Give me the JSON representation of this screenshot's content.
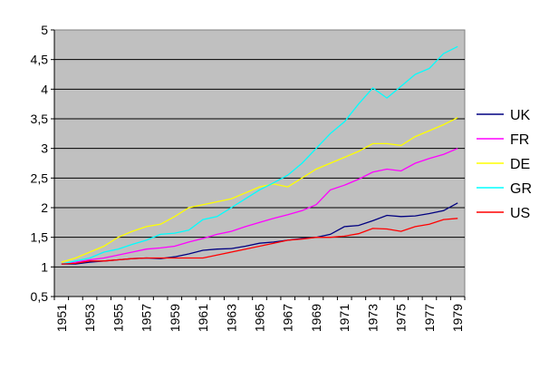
{
  "chart_data": {
    "type": "line",
    "title": "",
    "xlabel": "",
    "ylabel": "",
    "x": [
      1951,
      1952,
      1953,
      1954,
      1955,
      1956,
      1957,
      1958,
      1959,
      1960,
      1961,
      1962,
      1963,
      1964,
      1965,
      1966,
      1967,
      1968,
      1969,
      1970,
      1971,
      1972,
      1973,
      1974,
      1975,
      1976,
      1977,
      1978,
      1979
    ],
    "x_tick_labels": [
      "1951",
      "1953",
      "1955",
      "1957",
      "1959",
      "1961",
      "1963",
      "1965",
      "1967",
      "1969",
      "1971",
      "1973",
      "1975",
      "1977",
      "1979"
    ],
    "y_tick_labels": [
      "0,5",
      "1",
      "1,5",
      "2",
      "2,5",
      "3",
      "3,5",
      "4",
      "4,5",
      "5"
    ],
    "y_ticks": [
      0.5,
      1,
      1.5,
      2,
      2.5,
      3,
      3.5,
      4,
      4.5,
      5
    ],
    "ylim": [
      0.5,
      5
    ],
    "grid": "horizontal",
    "plot_background": "#c0c0c0",
    "legend_placement": "right",
    "series": [
      {
        "name": "UK",
        "color": "#000080",
        "values": [
          1.05,
          1.05,
          1.08,
          1.1,
          1.12,
          1.14,
          1.15,
          1.14,
          1.17,
          1.22,
          1.28,
          1.3,
          1.31,
          1.35,
          1.4,
          1.42,
          1.45,
          1.48,
          1.5,
          1.55,
          1.68,
          1.7,
          1.78,
          1.87,
          1.85,
          1.86,
          1.9,
          1.95,
          2.08
        ]
      },
      {
        "name": "FR",
        "color": "#ff00ff",
        "values": [
          1.05,
          1.08,
          1.12,
          1.15,
          1.2,
          1.25,
          1.3,
          1.32,
          1.35,
          1.42,
          1.48,
          1.55,
          1.6,
          1.68,
          1.75,
          1.82,
          1.88,
          1.95,
          2.05,
          2.3,
          2.38,
          2.48,
          2.6,
          2.65,
          2.62,
          2.75,
          2.83,
          2.9,
          3.0
        ]
      },
      {
        "name": "DE",
        "color": "#ffff00",
        "values": [
          1.08,
          1.15,
          1.25,
          1.35,
          1.5,
          1.6,
          1.68,
          1.72,
          1.85,
          2.0,
          2.05,
          2.1,
          2.15,
          2.25,
          2.35,
          2.4,
          2.35,
          2.5,
          2.65,
          2.75,
          2.85,
          2.95,
          3.08,
          3.08,
          3.05,
          3.2,
          3.3,
          3.4,
          3.52
        ]
      },
      {
        "name": "GR",
        "color": "#00ffff",
        "values": [
          1.05,
          1.1,
          1.15,
          1.25,
          1.3,
          1.38,
          1.45,
          1.55,
          1.57,
          1.62,
          1.8,
          1.85,
          2.0,
          2.15,
          2.3,
          2.42,
          2.55,
          2.75,
          3.0,
          3.25,
          3.45,
          3.75,
          4.02,
          3.85,
          4.05,
          4.25,
          4.35,
          4.6,
          4.72
        ]
      },
      {
        "name": "US",
        "color": "#ff0000",
        "values": [
          1.05,
          1.06,
          1.1,
          1.1,
          1.12,
          1.14,
          1.15,
          1.15,
          1.15,
          1.15,
          1.15,
          1.2,
          1.25,
          1.3,
          1.35,
          1.4,
          1.45,
          1.47,
          1.5,
          1.5,
          1.52,
          1.56,
          1.65,
          1.64,
          1.6,
          1.68,
          1.72,
          1.8,
          1.82
        ]
      }
    ]
  }
}
